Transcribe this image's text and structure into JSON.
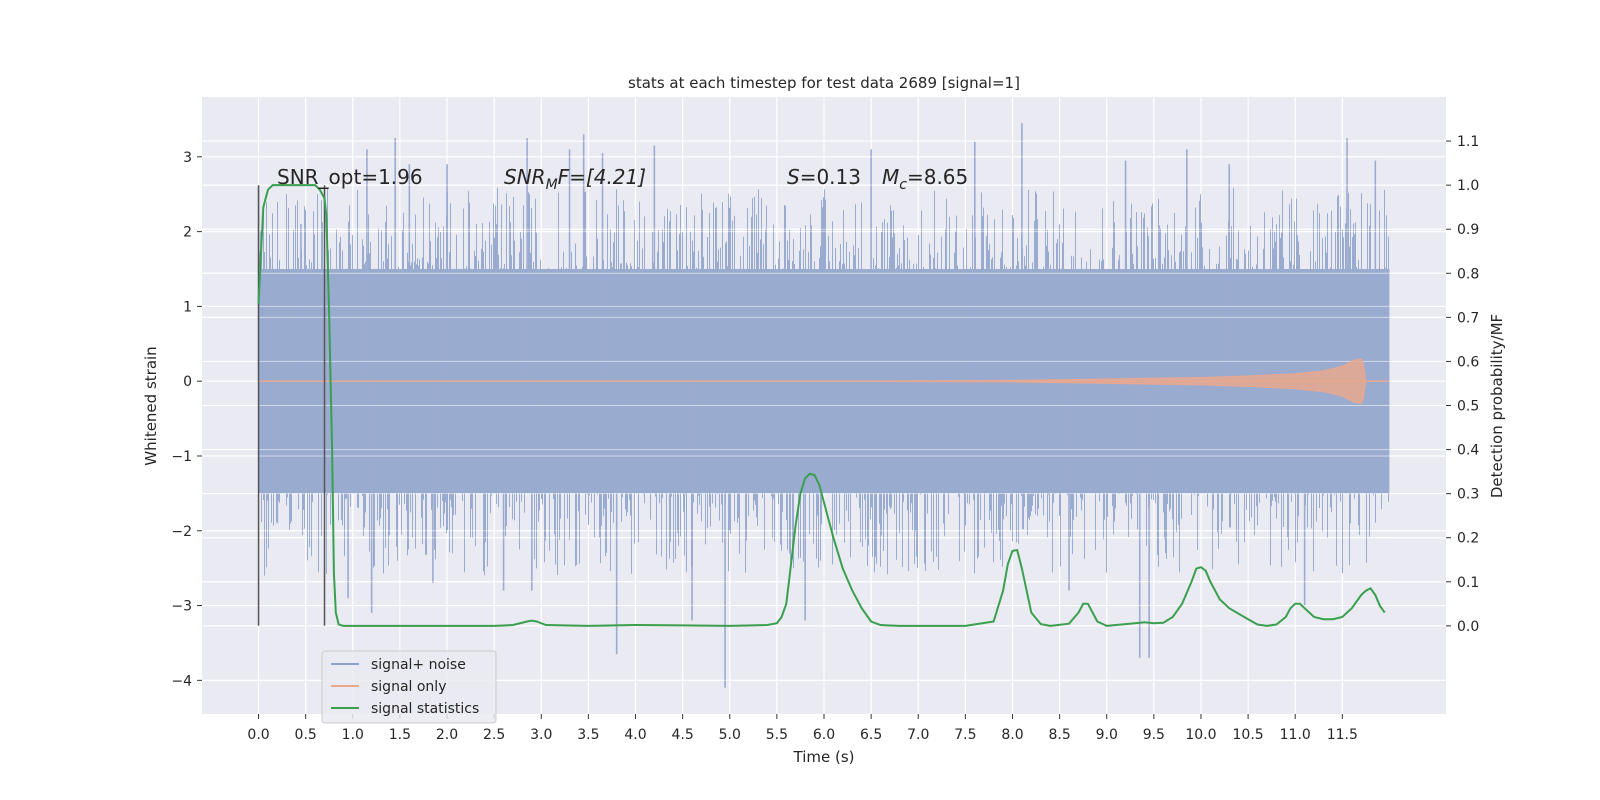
{
  "chart_data": {
    "type": "line",
    "title": "stats at each timestep for test data 2689 [signal=1]",
    "xlabel": "Time (s)",
    "ylabel_left": "Whitened strain",
    "ylabel_right": "Detection probability/MF",
    "xlim": [
      -0.6,
      12.6
    ],
    "ylim_left": [
      -4.45,
      3.8
    ],
    "ylim_right": [
      -0.2,
      1.2
    ],
    "x_ticks": [
      "0.0",
      "0.5",
      "1.0",
      "1.5",
      "2.0",
      "2.5",
      "3.0",
      "3.5",
      "4.0",
      "4.5",
      "5.0",
      "5.5",
      "6.0",
      "6.5",
      "7.0",
      "7.5",
      "8.0",
      "8.5",
      "9.0",
      "9.5",
      "10.0",
      "10.5",
      "11.0",
      "11.5"
    ],
    "y_ticks_left": [
      "3",
      "2",
      "1",
      "0",
      "−1",
      "−2",
      "−3",
      "−4"
    ],
    "y_ticks_right": [
      "1.1",
      "1.0",
      "0.9",
      "0.8",
      "0.7",
      "0.6",
      "0.5",
      "0.4",
      "0.3",
      "0.2",
      "0.1",
      "0.0"
    ],
    "grid": true,
    "legend_position": "lower-left",
    "legend": [
      "signal+ noise",
      "signal only",
      "signal statistics"
    ],
    "annotations": {
      "snr_opt": "SNR_opt=1.96",
      "snr_mf_main": "SNR",
      "snr_mf_sub": "M",
      "snr_mf_rest": "F=[4.21]",
      "s_main": "S",
      "s_rest": "=0.13",
      "mc_main": "M",
      "mc_sub": "c",
      "mc_rest": "=8.65"
    },
    "vertical_markers_x": [
      0.0,
      0.7
    ],
    "series": [
      {
        "name": "signal+ noise",
        "axis": "left",
        "x_range": [
          0.0,
          12.0
        ],
        "core_band": [
          -1.5,
          1.5
        ],
        "spike_peaks": [
          {
            "x": 0.0,
            "y": 2.6
          },
          {
            "x": 0.2,
            "y": -1.9
          },
          {
            "x": 0.45,
            "y": 2.1
          },
          {
            "x": 0.95,
            "y": -2.9
          },
          {
            "x": 1.15,
            "y": 3.1
          },
          {
            "x": 1.2,
            "y": -3.1
          },
          {
            "x": 1.45,
            "y": 3.25
          },
          {
            "x": 1.6,
            "y": 2.9
          },
          {
            "x": 1.85,
            "y": -2.7
          },
          {
            "x": 2.0,
            "y": 2.9
          },
          {
            "x": 2.6,
            "y": -2.8
          },
          {
            "x": 2.85,
            "y": 3.25
          },
          {
            "x": 2.9,
            "y": -2.8
          },
          {
            "x": 3.3,
            "y": 3.1
          },
          {
            "x": 3.45,
            "y": 3.3
          },
          {
            "x": 3.65,
            "y": 3.05
          },
          {
            "x": 3.8,
            "y": -3.65
          },
          {
            "x": 4.2,
            "y": 3.15
          },
          {
            "x": 4.6,
            "y": -3.2
          },
          {
            "x": 4.95,
            "y": -4.1
          },
          {
            "x": 5.8,
            "y": -3.2
          },
          {
            "x": 6.5,
            "y": 3.1
          },
          {
            "x": 7.6,
            "y": 3.2
          },
          {
            "x": 8.1,
            "y": 3.45
          },
          {
            "x": 8.6,
            "y": -2.8
          },
          {
            "x": 9.2,
            "y": 2.95
          },
          {
            "x": 9.35,
            "y": -3.7
          },
          {
            "x": 9.45,
            "y": -3.7
          },
          {
            "x": 9.85,
            "y": 3.1
          },
          {
            "x": 10.3,
            "y": 2.9
          },
          {
            "x": 11.1,
            "y": -3.0
          },
          {
            "x": 11.55,
            "y": 3.25
          },
          {
            "x": 11.85,
            "y": 2.95
          }
        ]
      },
      {
        "name": "signal only",
        "axis": "left",
        "x": [
          0.0,
          6.0,
          8.0,
          9.0,
          10.0,
          10.5,
          11.0,
          11.3,
          11.5,
          11.62,
          11.7,
          11.72,
          11.75,
          12.0
        ],
        "envelope": [
          0.0,
          0.0,
          0.01,
          0.03,
          0.05,
          0.07,
          0.1,
          0.14,
          0.2,
          0.28,
          0.3,
          0.25,
          0.0,
          0.0
        ]
      },
      {
        "name": "signal statistics",
        "axis": "right",
        "x": [
          0.0,
          0.05,
          0.1,
          0.15,
          0.2,
          0.3,
          0.4,
          0.5,
          0.55,
          0.6,
          0.65,
          0.7,
          0.72,
          0.75,
          0.78,
          0.8,
          0.82,
          0.85,
          0.9,
          1.0,
          1.5,
          2.0,
          2.5,
          2.7,
          2.85,
          2.9,
          2.95,
          3.05,
          3.5,
          4.0,
          4.5,
          5.0,
          5.4,
          5.5,
          5.55,
          5.6,
          5.65,
          5.7,
          5.75,
          5.8,
          5.85,
          5.9,
          5.95,
          6.0,
          6.05,
          6.1,
          6.2,
          6.3,
          6.4,
          6.5,
          6.6,
          6.8,
          7.0,
          7.5,
          7.8,
          7.9,
          7.95,
          8.0,
          8.05,
          8.1,
          8.15,
          8.2,
          8.3,
          8.4,
          8.6,
          8.7,
          8.75,
          8.8,
          8.85,
          8.9,
          9.0,
          9.2,
          9.4,
          9.5,
          9.6,
          9.7,
          9.8,
          9.9,
          9.95,
          10.0,
          10.05,
          10.1,
          10.2,
          10.3,
          10.5,
          10.6,
          10.7,
          10.8,
          10.9,
          10.95,
          11.0,
          11.05,
          11.1,
          11.2,
          11.3,
          11.4,
          11.5,
          11.6,
          11.7,
          11.75,
          11.8,
          11.85,
          11.9,
          11.95
        ],
        "values": [
          0.73,
          0.95,
          0.99,
          1.0,
          1.0,
          1.0,
          1.0,
          1.0,
          1.0,
          1.0,
          0.99,
          0.97,
          0.93,
          0.7,
          0.4,
          0.12,
          0.03,
          0.003,
          0.0,
          0.0,
          0.0,
          0.0,
          0.0,
          0.002,
          0.01,
          0.012,
          0.01,
          0.002,
          0.0,
          0.002,
          0.001,
          0.0,
          0.002,
          0.006,
          0.02,
          0.05,
          0.14,
          0.23,
          0.3,
          0.335,
          0.345,
          0.342,
          0.32,
          0.28,
          0.24,
          0.2,
          0.13,
          0.08,
          0.04,
          0.01,
          0.002,
          0.0,
          0.0,
          0.0,
          0.01,
          0.08,
          0.14,
          0.17,
          0.172,
          0.13,
          0.08,
          0.03,
          0.004,
          0.0,
          0.005,
          0.03,
          0.05,
          0.05,
          0.03,
          0.01,
          0.0,
          0.004,
          0.008,
          0.006,
          0.007,
          0.02,
          0.05,
          0.1,
          0.13,
          0.133,
          0.125,
          0.1,
          0.06,
          0.04,
          0.015,
          0.003,
          0.0,
          0.003,
          0.02,
          0.04,
          0.05,
          0.05,
          0.04,
          0.02,
          0.015,
          0.015,
          0.02,
          0.04,
          0.07,
          0.08,
          0.085,
          0.07,
          0.045,
          0.03
        ]
      }
    ]
  }
}
